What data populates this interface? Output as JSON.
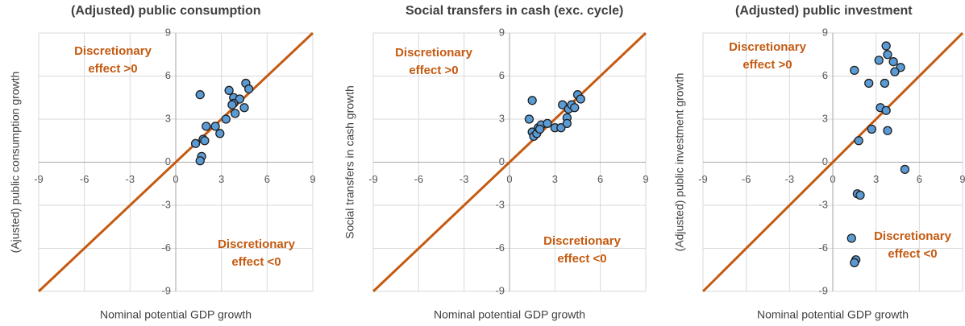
{
  "chart_data": [
    {
      "type": "scatter",
      "title": "(Adjusted) public consumption",
      "x_label": "Nominal potential GDP growth",
      "y_label": "(Ajusted) public consumption growth",
      "xlim": [
        -9,
        9
      ],
      "ylim": [
        -9,
        9
      ],
      "xticks": [
        -9,
        -6,
        -3,
        0,
        3,
        6,
        9
      ],
      "yticks": [
        -9,
        -6,
        -3,
        0,
        3,
        6,
        9
      ],
      "grid": true,
      "diagonal": true,
      "diagonal_color": "#C55A11",
      "color": "#5B9BD5",
      "annotations": [
        {
          "lines": [
            "Discretionary",
            "effect >0"
          ]
        },
        {
          "lines": [
            "Discretionary",
            "effect <0"
          ]
        }
      ],
      "x": [
        1.6,
        3.5,
        4.6,
        4.8,
        3.8,
        4.2,
        3.8,
        3.7,
        4.5,
        3.9,
        3.3,
        2.0,
        2.6,
        2.9,
        1.8,
        1.9,
        1.3,
        1.7,
        1.6
      ],
      "y": [
        4.7,
        5.0,
        5.5,
        5.1,
        4.5,
        4.4,
        4.1,
        4.0,
        3.8,
        3.4,
        3.0,
        2.5,
        2.5,
        2.0,
        1.6,
        1.5,
        1.3,
        0.4,
        0.1
      ]
    },
    {
      "type": "scatter",
      "title": "Social transfers in cash (exc. cycle)",
      "x_label": "Nominal potential GDP growth",
      "y_label": "Social transfers in cash growth",
      "xlim": [
        -9,
        9
      ],
      "ylim": [
        -9,
        9
      ],
      "xticks": [
        -9,
        -6,
        -3,
        0,
        3,
        6,
        9
      ],
      "yticks": [
        -9,
        -6,
        -3,
        0,
        3,
        6,
        9
      ],
      "grid": true,
      "diagonal": true,
      "diagonal_color": "#C55A11",
      "color": "#5B9BD5",
      "annotations": [
        {
          "lines": [
            "Discretionary",
            "effect >0"
          ]
        },
        {
          "lines": [
            "Discretionary",
            "effect <0"
          ]
        }
      ],
      "x": [
        1.5,
        1.3,
        1.5,
        1.6,
        1.8,
        1.9,
        2.1,
        2.5,
        3.0,
        3.4,
        3.5,
        3.8,
        3.8,
        3.9,
        4.1,
        4.3,
        4.5,
        4.7,
        2.0
      ],
      "y": [
        4.3,
        3.0,
        2.1,
        1.8,
        2.0,
        2.4,
        2.6,
        2.7,
        2.4,
        2.4,
        4.0,
        3.1,
        2.7,
        3.7,
        4.0,
        3.8,
        4.7,
        4.4,
        2.3
      ]
    },
    {
      "type": "scatter",
      "title": "(Adjusted) public investment",
      "x_label": "Nominal potential GDP growth",
      "y_label": "(Adjusted) public investment growth",
      "xlim": [
        -9,
        9
      ],
      "ylim": [
        -9,
        9
      ],
      "xticks": [
        -9,
        -6,
        -3,
        0,
        3,
        6,
        9
      ],
      "yticks": [
        -9,
        -6,
        -3,
        0,
        3,
        6,
        9
      ],
      "grid": true,
      "diagonal": true,
      "diagonal_color": "#C55A11",
      "color": "#5B9BD5",
      "annotations": [
        {
          "lines": [
            "Discretionary",
            "effect >0"
          ]
        },
        {
          "lines": [
            "Discretionary",
            "effect <0"
          ]
        }
      ],
      "x": [
        1.5,
        2.5,
        3.2,
        3.7,
        3.8,
        4.2,
        4.7,
        4.3,
        3.6,
        3.3,
        3.7,
        2.7,
        3.8,
        1.8,
        5.0,
        1.7,
        1.9,
        1.3,
        1.6,
        1.5
      ],
      "y": [
        6.4,
        5.5,
        7.1,
        8.1,
        7.5,
        7.0,
        6.6,
        6.3,
        5.5,
        3.8,
        3.6,
        2.3,
        2.2,
        1.5,
        -0.5,
        -2.2,
        -2.3,
        -5.3,
        -6.8,
        -7.0
      ]
    }
  ]
}
